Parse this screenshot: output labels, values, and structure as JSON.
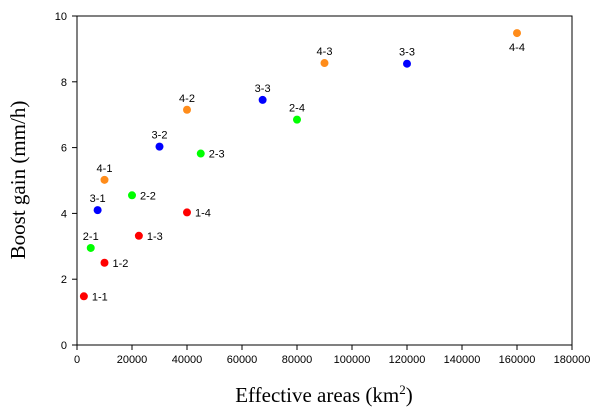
{
  "chart_data": {
    "type": "scatter",
    "title": "",
    "xlabel": "Effective areas (km",
    "xlabel_sup": "2",
    "xlabel_end": ")",
    "ylabel": "Boost gain (mm/h)",
    "xlim": [
      0,
      180000
    ],
    "ylim": [
      0,
      10
    ],
    "xticks": [
      0,
      20000,
      40000,
      60000,
      80000,
      100000,
      120000,
      140000,
      160000,
      180000
    ],
    "yticks": [
      0,
      2,
      4,
      6,
      8,
      10
    ],
    "grid": false,
    "legend": "none",
    "points": [
      {
        "label": "1-1",
        "x": 2500,
        "y": 1.48,
        "color": "#ff0000",
        "pos": "right"
      },
      {
        "label": "1-2",
        "x": 10000,
        "y": 2.5,
        "color": "#ff0000",
        "pos": "right"
      },
      {
        "label": "1-3",
        "x": 22500,
        "y": 3.32,
        "color": "#ff0000",
        "pos": "right"
      },
      {
        "label": "1-4",
        "x": 40000,
        "y": 4.03,
        "color": "#ff0000",
        "pos": "right"
      },
      {
        "label": "2-1",
        "x": 5000,
        "y": 2.95,
        "color": "#00ff00",
        "pos": "above"
      },
      {
        "label": "2-2",
        "x": 20000,
        "y": 4.55,
        "color": "#00ff00",
        "pos": "right"
      },
      {
        "label": "2-3",
        "x": 45000,
        "y": 5.82,
        "color": "#00ff00",
        "pos": "right"
      },
      {
        "label": "2-4",
        "x": 80000,
        "y": 6.85,
        "color": "#00ff00",
        "pos": "above"
      },
      {
        "label": "3-1",
        "x": 7500,
        "y": 4.1,
        "color": "#0000ff",
        "pos": "above"
      },
      {
        "label": "3-2",
        "x": 30000,
        "y": 6.03,
        "color": "#0000ff",
        "pos": "above"
      },
      {
        "label": "3-3",
        "x": 67500,
        "y": 7.45,
        "color": "#0000ff",
        "pos": "above"
      },
      {
        "label": "3-3",
        "x": 120000,
        "y": 8.55,
        "color": "#0000ff",
        "pos": "above"
      },
      {
        "label": "4-1",
        "x": 10000,
        "y": 5.02,
        "color": "#ff8c1a",
        "pos": "above"
      },
      {
        "label": "4-2",
        "x": 40000,
        "y": 7.15,
        "color": "#ff8c1a",
        "pos": "above"
      },
      {
        "label": "4-3",
        "x": 90000,
        "y": 8.57,
        "color": "#ff8c1a",
        "pos": "above"
      },
      {
        "label": "4-4",
        "x": 160000,
        "y": 9.48,
        "color": "#ff8c1a",
        "pos": "below"
      }
    ]
  }
}
